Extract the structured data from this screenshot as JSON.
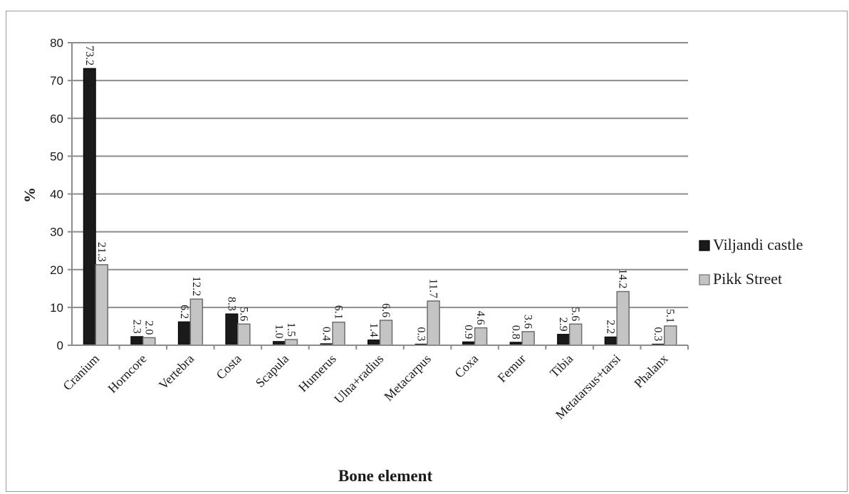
{
  "chart_data": {
    "type": "bar",
    "title": "",
    "xlabel": "Bone element",
    "ylabel": "%",
    "ylim": [
      0,
      80
    ],
    "yticks": [
      "0",
      "10",
      "20",
      "30",
      "40",
      "50",
      "60",
      "70",
      "80"
    ],
    "grid": true,
    "legend_position": "right",
    "categories": [
      "Cranium",
      "Horncore",
      "Vertebra",
      "Costa",
      "Scapula",
      "Humerus",
      "Ulna+radius",
      "Metacarpus",
      "Coxa",
      "Femur",
      "Tibia",
      "Metatarsus+tarsi",
      "Phalanx"
    ],
    "series": [
      {
        "name": "Viljandi castle",
        "color": "#1a1a1a",
        "values": [
          73.2,
          2.3,
          6.2,
          8.3,
          1.0,
          0.4,
          1.4,
          0.3,
          0.9,
          0.8,
          2.9,
          2.2,
          0.3
        ],
        "labels": [
          "73.2",
          "2.3",
          "6.2",
          "8.3",
          "1.0",
          "0.4",
          "1.4",
          "0.3",
          "0.9",
          "0.8",
          "2.9",
          "2.2",
          "0.3"
        ]
      },
      {
        "name": "Pikk Street",
        "color": "#c4c4c4",
        "values": [
          21.3,
          2.0,
          12.2,
          5.6,
          1.5,
          6.1,
          6.6,
          11.7,
          4.6,
          3.6,
          5.6,
          14.2,
          5.1
        ],
        "labels": [
          "21.3",
          "2.0",
          "12.2",
          "5.6",
          "1.5",
          "6.1",
          "6.6",
          "11.7",
          "4.6",
          "3.6",
          "5.6",
          "14.2",
          "5.1"
        ]
      }
    ]
  }
}
